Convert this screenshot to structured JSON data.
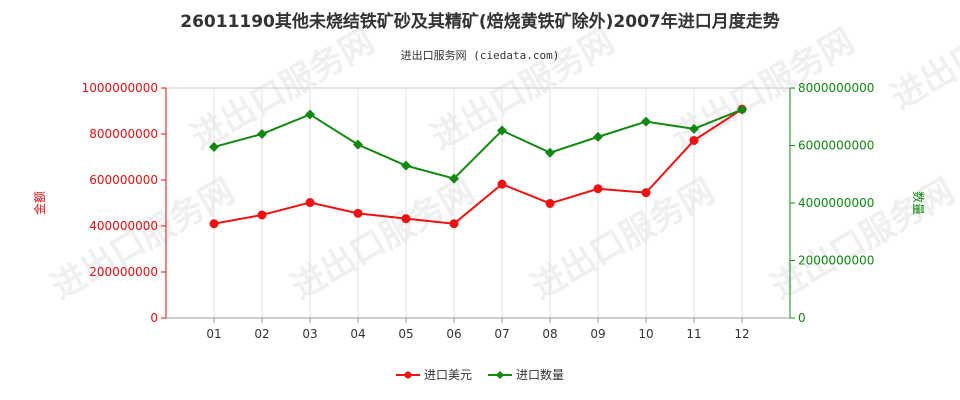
{
  "chart_data": {
    "type": "line",
    "title": "26011190其他未烧结铁矿砂及其精矿(焙烧黄铁矿除外)2007年进口月度走势",
    "subtitle": "进出口服务网 (ciedata.com)",
    "watermark": "进出口服务网",
    "categories": [
      "01",
      "02",
      "03",
      "04",
      "05",
      "06",
      "07",
      "08",
      "09",
      "10",
      "11",
      "12"
    ],
    "left_axis": {
      "label": "金额",
      "ylim": [
        0,
        1000000000
      ],
      "ticks": [
        0,
        200000000,
        400000000,
        600000000,
        800000000,
        1000000000
      ],
      "tick_labels": [
        "0",
        "200000000",
        "400000000",
        "600000000",
        "800000000",
        "1000000000"
      ],
      "color": "#dd1111"
    },
    "right_axis": {
      "label": "数量",
      "ylim": [
        0,
        8000000000
      ],
      "ticks": [
        0,
        2000000000,
        4000000000,
        6000000000,
        8000000000
      ],
      "tick_labels": [
        "0",
        "2000000000",
        "4000000000",
        "6000000000",
        "8000000000"
      ],
      "color": "#118811"
    },
    "series": [
      {
        "name": "进口美元",
        "axis": "left",
        "color": "#ee1111",
        "marker": "circle",
        "values": [
          410000000,
          448000000,
          502000000,
          455000000,
          432000000,
          410000000,
          582000000,
          498000000,
          562000000,
          545000000,
          772000000,
          908000000
        ]
      },
      {
        "name": "进口数量",
        "axis": "right",
        "color": "#118811",
        "marker": "diamond",
        "values": [
          5950000000,
          6400000000,
          7080000000,
          6030000000,
          5300000000,
          4850000000,
          6520000000,
          5750000000,
          6300000000,
          6830000000,
          6580000000,
          7250000000
        ]
      }
    ],
    "grid": "vertical",
    "legend_position": "bottom"
  }
}
